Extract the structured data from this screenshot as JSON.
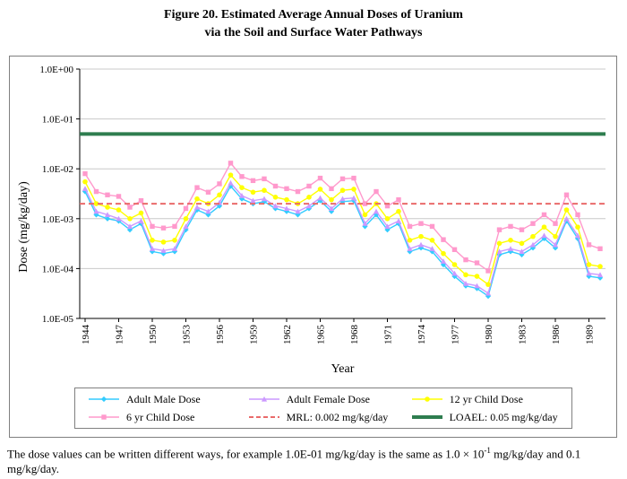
{
  "figure": {
    "title_line1": "Figure 20. Estimated Average Annual Doses of Uranium",
    "title_line2": "via the Soil and Surface Water Pathways",
    "footnote_part1": "The dose values can be written different ways, for example 1.0E-01 mg/kg/day is the same as 1.0 × 10",
    "footnote_sup": "-1",
    "footnote_part2": " mg/kg/day and 0.1 mg/kg/day."
  },
  "chart_data": {
    "type": "line",
    "title": "Figure 20. Estimated Average Annual Doses of Uranium via the Soil and Surface Water Pathways",
    "xlabel": "Year",
    "ylabel": "Dose (mg/kg/day)",
    "y_scale": "log",
    "ylim": [
      1e-05,
      1
    ],
    "grid": "horizontal",
    "legend_position": "bottom-box",
    "y_tick_labels": [
      "1.0E+00",
      "1.0E-01",
      "1.0E-02",
      "1.0E-03",
      "1.0E-04",
      "1.0E-05"
    ],
    "x": [
      1944,
      1945,
      1946,
      1947,
      1948,
      1949,
      1950,
      1951,
      1952,
      1953,
      1954,
      1955,
      1956,
      1957,
      1958,
      1959,
      1960,
      1961,
      1962,
      1963,
      1964,
      1965,
      1966,
      1967,
      1968,
      1969,
      1970,
      1971,
      1972,
      1973,
      1974,
      1975,
      1976,
      1977,
      1978,
      1979,
      1980,
      1981,
      1982,
      1983,
      1984,
      1985,
      1986,
      1987,
      1988,
      1989,
      1990
    ],
    "x_ticks": [
      1944,
      1947,
      1950,
      1953,
      1956,
      1959,
      1962,
      1965,
      1968,
      1971,
      1974,
      1977,
      1980,
      1983,
      1986,
      1989
    ],
    "series": [
      {
        "name": "Adult Male Dose",
        "color": "#33CCFF",
        "marker": "diamond",
        "values": [
          0.0035,
          0.0012,
          0.001,
          0.0009,
          0.0006,
          0.0008,
          0.00022,
          0.0002,
          0.00022,
          0.0006,
          0.0015,
          0.0012,
          0.0018,
          0.0045,
          0.0025,
          0.002,
          0.0022,
          0.0016,
          0.0014,
          0.0012,
          0.0016,
          0.0023,
          0.0014,
          0.0022,
          0.0023,
          0.0007,
          0.0012,
          0.0006,
          0.0008,
          0.00022,
          0.00026,
          0.00022,
          0.00012,
          7e-05,
          4.5e-05,
          4e-05,
          2.8e-05,
          0.00019,
          0.00022,
          0.00019,
          0.00026,
          0.0004,
          0.00026,
          0.0009,
          0.0004,
          7e-05,
          6.5e-05
        ]
      },
      {
        "name": "Adult Female Dose",
        "color": "#CC99FF",
        "marker": "triangle",
        "values": [
          0.004,
          0.0014,
          0.0012,
          0.001,
          0.0007,
          0.0009,
          0.00025,
          0.00023,
          0.00025,
          0.0007,
          0.0017,
          0.0014,
          0.0021,
          0.0052,
          0.0029,
          0.0023,
          0.0025,
          0.0018,
          0.0016,
          0.0014,
          0.0018,
          0.0026,
          0.0016,
          0.0025,
          0.0026,
          0.0008,
          0.0014,
          0.0007,
          0.0009,
          0.00025,
          0.0003,
          0.00025,
          0.00014,
          8e-05,
          5e-05,
          4.5e-05,
          3.2e-05,
          0.00022,
          0.00025,
          0.00022,
          0.0003,
          0.00046,
          0.0003,
          0.001,
          0.00046,
          8e-05,
          7.5e-05
        ]
      },
      {
        "name": "12 yr Child Dose",
        "color": "#FFFF00",
        "marker": "circle",
        "values": [
          0.0055,
          0.002,
          0.0017,
          0.0015,
          0.001,
          0.0013,
          0.00037,
          0.00034,
          0.00037,
          0.001,
          0.0025,
          0.002,
          0.003,
          0.0075,
          0.0042,
          0.0034,
          0.0037,
          0.0027,
          0.0024,
          0.002,
          0.0027,
          0.0039,
          0.0024,
          0.0037,
          0.0039,
          0.0012,
          0.002,
          0.001,
          0.0014,
          0.00037,
          0.00044,
          0.00037,
          0.0002,
          0.00012,
          7.5e-05,
          7e-05,
          4.8e-05,
          0.00032,
          0.00037,
          0.00032,
          0.00044,
          0.00068,
          0.00044,
          0.0015,
          0.00068,
          0.00012,
          0.00011
        ]
      },
      {
        "name": "6 yr Child Dose",
        "color": "#FF99CC",
        "marker": "square",
        "values": [
          0.008,
          0.0035,
          0.003,
          0.0028,
          0.0017,
          0.0023,
          0.0007,
          0.00065,
          0.0007,
          0.0016,
          0.0042,
          0.0034,
          0.005,
          0.013,
          0.007,
          0.0058,
          0.0063,
          0.0045,
          0.004,
          0.0035,
          0.0045,
          0.0065,
          0.004,
          0.0063,
          0.0065,
          0.002,
          0.0035,
          0.0018,
          0.0024,
          0.0007,
          0.0008,
          0.0007,
          0.00038,
          0.00024,
          0.00015,
          0.00013,
          9e-05,
          0.0006,
          0.0007,
          0.0006,
          0.0008,
          0.0012,
          0.0008,
          0.003,
          0.0012,
          0.0003,
          0.00025
        ]
      }
    ],
    "reference_lines": [
      {
        "name": "MRL: 0.002 mg/kg/day",
        "value": 0.002,
        "color": "#E96B6B",
        "style": "dashed"
      },
      {
        "name": "LOAEL: 0.05 mg/kg/day",
        "value": 0.05,
        "color": "#2E7D4F",
        "style": "solid"
      }
    ]
  }
}
